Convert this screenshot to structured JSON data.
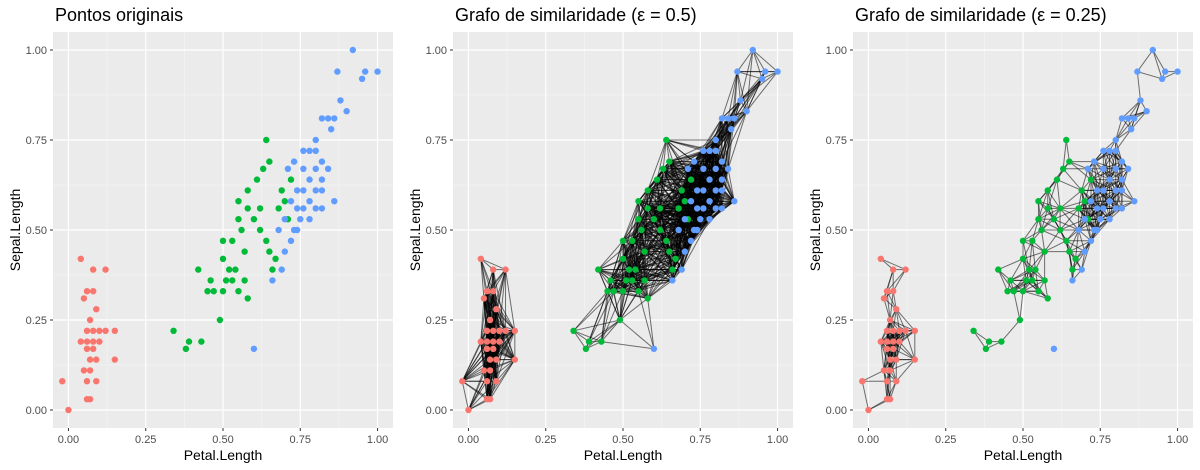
{
  "palette": {
    "panel_background": "#ebebeb",
    "grid_major": "#ffffff",
    "grid_minor": "#f5f5f5",
    "tick_text": "#4d4d4d",
    "edge": "#000000",
    "series_colors": [
      "#f8766d",
      "#00ba38",
      "#619cff"
    ]
  },
  "chart_data": [
    {
      "type": "scatter",
      "title": "Pontos originais",
      "xlabel": "Petal.Length",
      "ylabel": "Sepal.Length",
      "xlim": [
        -0.05,
        1.05
      ],
      "ylim": [
        -0.05,
        1.05
      ],
      "x_ticks": [
        "0.00",
        "0.25",
        "0.50",
        "0.75",
        "1.00"
      ],
      "y_ticks": [
        "0.00",
        "0.25",
        "0.50",
        "0.75",
        "1.00"
      ],
      "grid": true,
      "graph_epsilon": null
    },
    {
      "type": "scatter",
      "title": "Grafo de similaridade (ε = 0.5)",
      "xlabel": "Petal.Length",
      "ylabel": "Sepal.Length",
      "xlim": [
        -0.05,
        1.05
      ],
      "ylim": [
        -0.05,
        1.05
      ],
      "x_ticks": [
        "0.00",
        "0.25",
        "0.50",
        "0.75",
        "1.00"
      ],
      "y_ticks": [
        "0.00",
        "0.25",
        "0.50",
        "0.75",
        "1.00"
      ],
      "grid": true,
      "graph_epsilon": 0.5
    },
    {
      "type": "scatter",
      "title": "Grafo de similaridade (ε = 0.25)",
      "xlabel": "Petal.Length",
      "ylabel": "Sepal.Length",
      "xlim": [
        -0.05,
        1.05
      ],
      "ylim": [
        -0.05,
        1.05
      ],
      "x_ticks": [
        "0.00",
        "0.25",
        "0.50",
        "0.75",
        "1.00"
      ],
      "y_ticks": [
        "0.00",
        "0.25",
        "0.50",
        "0.75",
        "1.00"
      ],
      "grid": true,
      "graph_epsilon": 0.25
    }
  ],
  "points": [
    {
      "x": 0.0,
      "y": 0.0,
      "g": 0
    },
    {
      "x": -0.02,
      "y": 0.08,
      "g": 0
    },
    {
      "x": 0.04,
      "y": 0.42,
      "g": 0
    },
    {
      "x": 0.08,
      "y": 0.39,
      "g": 0
    },
    {
      "x": 0.12,
      "y": 0.39,
      "g": 0
    },
    {
      "x": 0.06,
      "y": 0.33,
      "g": 0
    },
    {
      "x": 0.08,
      "y": 0.33,
      "g": 0
    },
    {
      "x": 0.05,
      "y": 0.31,
      "g": 0
    },
    {
      "x": 0.09,
      "y": 0.28,
      "g": 0
    },
    {
      "x": 0.07,
      "y": 0.25,
      "g": 0
    },
    {
      "x": 0.06,
      "y": 0.22,
      "g": 0
    },
    {
      "x": 0.08,
      "y": 0.22,
      "g": 0
    },
    {
      "x": 0.1,
      "y": 0.22,
      "g": 0
    },
    {
      "x": 0.12,
      "y": 0.22,
      "g": 0
    },
    {
      "x": 0.15,
      "y": 0.22,
      "g": 0
    },
    {
      "x": 0.04,
      "y": 0.19,
      "g": 0
    },
    {
      "x": 0.06,
      "y": 0.19,
      "g": 0
    },
    {
      "x": 0.08,
      "y": 0.19,
      "g": 0
    },
    {
      "x": 0.1,
      "y": 0.19,
      "g": 0
    },
    {
      "x": 0.06,
      "y": 0.17,
      "g": 0
    },
    {
      "x": 0.08,
      "y": 0.17,
      "g": 0
    },
    {
      "x": 0.07,
      "y": 0.14,
      "g": 0
    },
    {
      "x": 0.09,
      "y": 0.14,
      "g": 0
    },
    {
      "x": 0.15,
      "y": 0.14,
      "g": 0
    },
    {
      "x": 0.05,
      "y": 0.11,
      "g": 0
    },
    {
      "x": 0.07,
      "y": 0.11,
      "g": 0
    },
    {
      "x": 0.06,
      "y": 0.08,
      "g": 0
    },
    {
      "x": 0.09,
      "y": 0.08,
      "g": 0
    },
    {
      "x": 0.06,
      "y": 0.03,
      "g": 0
    },
    {
      "x": 0.07,
      "y": 0.03,
      "g": 0
    },
    {
      "x": 0.34,
      "y": 0.22,
      "g": 1
    },
    {
      "x": 0.39,
      "y": 0.19,
      "g": 1
    },
    {
      "x": 0.43,
      "y": 0.19,
      "g": 1
    },
    {
      "x": 0.38,
      "y": 0.17,
      "g": 1
    },
    {
      "x": 0.49,
      "y": 0.25,
      "g": 1
    },
    {
      "x": 0.42,
      "y": 0.39,
      "g": 1
    },
    {
      "x": 0.46,
      "y": 0.36,
      "g": 1
    },
    {
      "x": 0.45,
      "y": 0.33,
      "g": 1
    },
    {
      "x": 0.47,
      "y": 0.33,
      "g": 1
    },
    {
      "x": 0.5,
      "y": 0.42,
      "g": 1
    },
    {
      "x": 0.52,
      "y": 0.39,
      "g": 1
    },
    {
      "x": 0.54,
      "y": 0.39,
      "g": 1
    },
    {
      "x": 0.51,
      "y": 0.36,
      "g": 1
    },
    {
      "x": 0.53,
      "y": 0.36,
      "g": 1
    },
    {
      "x": 0.5,
      "y": 0.33,
      "g": 1
    },
    {
      "x": 0.55,
      "y": 0.33,
      "g": 1
    },
    {
      "x": 0.57,
      "y": 0.36,
      "g": 1
    },
    {
      "x": 0.58,
      "y": 0.31,
      "g": 1
    },
    {
      "x": 0.5,
      "y": 0.47,
      "g": 1
    },
    {
      "x": 0.53,
      "y": 0.47,
      "g": 1
    },
    {
      "x": 0.56,
      "y": 0.5,
      "g": 1
    },
    {
      "x": 0.57,
      "y": 0.44,
      "g": 1
    },
    {
      "x": 0.55,
      "y": 0.53,
      "g": 1
    },
    {
      "x": 0.58,
      "y": 0.56,
      "g": 1
    },
    {
      "x": 0.55,
      "y": 0.58,
      "g": 1
    },
    {
      "x": 0.58,
      "y": 0.61,
      "g": 1
    },
    {
      "x": 0.6,
      "y": 0.53,
      "g": 1
    },
    {
      "x": 0.62,
      "y": 0.5,
      "g": 1
    },
    {
      "x": 0.61,
      "y": 0.64,
      "g": 1
    },
    {
      "x": 0.63,
      "y": 0.67,
      "g": 1
    },
    {
      "x": 0.64,
      "y": 0.75,
      "g": 1
    },
    {
      "x": 0.65,
      "y": 0.69,
      "g": 1
    },
    {
      "x": 0.62,
      "y": 0.56,
      "g": 1
    },
    {
      "x": 0.64,
      "y": 0.47,
      "g": 1
    },
    {
      "x": 0.65,
      "y": 0.44,
      "g": 1
    },
    {
      "x": 0.66,
      "y": 0.39,
      "g": 1
    },
    {
      "x": 0.67,
      "y": 0.42,
      "g": 1
    },
    {
      "x": 0.68,
      "y": 0.56,
      "g": 1
    },
    {
      "x": 0.69,
      "y": 0.61,
      "g": 1
    },
    {
      "x": 0.7,
      "y": 0.58,
      "g": 1
    },
    {
      "x": 0.72,
      "y": 0.64,
      "g": 1
    },
    {
      "x": 0.71,
      "y": 0.53,
      "g": 1
    },
    {
      "x": 0.6,
      "y": 0.17,
      "g": 2
    },
    {
      "x": 0.66,
      "y": 0.36,
      "g": 2
    },
    {
      "x": 0.69,
      "y": 0.39,
      "g": 2
    },
    {
      "x": 0.7,
      "y": 0.44,
      "g": 2
    },
    {
      "x": 0.72,
      "y": 0.47,
      "g": 2
    },
    {
      "x": 0.68,
      "y": 0.5,
      "g": 2
    },
    {
      "x": 0.73,
      "y": 0.5,
      "g": 2
    },
    {
      "x": 0.7,
      "y": 0.53,
      "g": 2
    },
    {
      "x": 0.75,
      "y": 0.53,
      "g": 2
    },
    {
      "x": 0.74,
      "y": 0.56,
      "g": 2
    },
    {
      "x": 0.76,
      "y": 0.56,
      "g": 2
    },
    {
      "x": 0.72,
      "y": 0.58,
      "g": 2
    },
    {
      "x": 0.74,
      "y": 0.61,
      "g": 2
    },
    {
      "x": 0.78,
      "y": 0.58,
      "g": 2
    },
    {
      "x": 0.8,
      "y": 0.56,
      "g": 2
    },
    {
      "x": 0.76,
      "y": 0.61,
      "g": 2
    },
    {
      "x": 0.71,
      "y": 0.67,
      "g": 2
    },
    {
      "x": 0.73,
      "y": 0.69,
      "g": 2
    },
    {
      "x": 0.76,
      "y": 0.67,
      "g": 2
    },
    {
      "x": 0.78,
      "y": 0.64,
      "g": 2
    },
    {
      "x": 0.8,
      "y": 0.67,
      "g": 2
    },
    {
      "x": 0.82,
      "y": 0.69,
      "g": 2
    },
    {
      "x": 0.84,
      "y": 0.67,
      "g": 2
    },
    {
      "x": 0.76,
      "y": 0.72,
      "g": 2
    },
    {
      "x": 0.78,
      "y": 0.72,
      "g": 2
    },
    {
      "x": 0.8,
      "y": 0.72,
      "g": 2
    },
    {
      "x": 0.82,
      "y": 0.64,
      "g": 2
    },
    {
      "x": 0.8,
      "y": 0.61,
      "g": 2
    },
    {
      "x": 0.82,
      "y": 0.61,
      "g": 2
    },
    {
      "x": 0.86,
      "y": 0.58,
      "g": 2
    },
    {
      "x": 0.82,
      "y": 0.56,
      "g": 2
    },
    {
      "x": 0.78,
      "y": 0.53,
      "g": 2
    },
    {
      "x": 0.74,
      "y": 0.5,
      "g": 2
    },
    {
      "x": 0.8,
      "y": 0.75,
      "g": 2
    },
    {
      "x": 0.82,
      "y": 0.81,
      "g": 2
    },
    {
      "x": 0.84,
      "y": 0.81,
      "g": 2
    },
    {
      "x": 0.85,
      "y": 0.78,
      "g": 2
    },
    {
      "x": 0.86,
      "y": 0.81,
      "g": 2
    },
    {
      "x": 0.88,
      "y": 0.86,
      "g": 2
    },
    {
      "x": 0.9,
      "y": 0.83,
      "g": 2
    },
    {
      "x": 0.87,
      "y": 0.94,
      "g": 2
    },
    {
      "x": 0.92,
      "y": 1.0,
      "g": 2
    },
    {
      "x": 0.96,
      "y": 0.94,
      "g": 2
    },
    {
      "x": 0.95,
      "y": 0.92,
      "g": 2
    },
    {
      "x": 1.0,
      "y": 0.94,
      "g": 2
    }
  ]
}
